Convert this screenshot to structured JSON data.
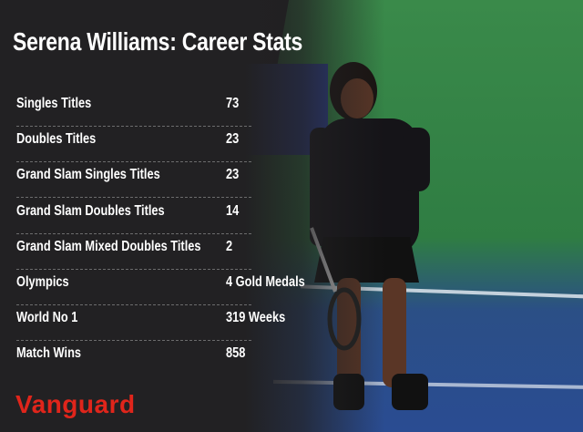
{
  "title": "Serena Williams: Career Stats",
  "stats": [
    {
      "label": "Singles Titles",
      "value": "73"
    },
    {
      "label": "Doubles Titles",
      "value": "23"
    },
    {
      "label": "Grand Slam Singles Titles",
      "value": "23"
    },
    {
      "label": "Grand Slam Doubles Titles",
      "value": "14"
    },
    {
      "label": "Grand Slam Mixed Doubles Titles",
      "value": "2"
    },
    {
      "label": "Olympics",
      "value": "4 Gold Medals"
    },
    {
      "label": "World No 1",
      "value": "319 Weeks"
    },
    {
      "label": "Match Wins",
      "value": "858"
    }
  ],
  "logo": "Vanguard",
  "colors": {
    "panel": "#222123",
    "logo": "#e0251b",
    "court_green": "#2f7d43",
    "court_blue": "#2a4c92"
  }
}
